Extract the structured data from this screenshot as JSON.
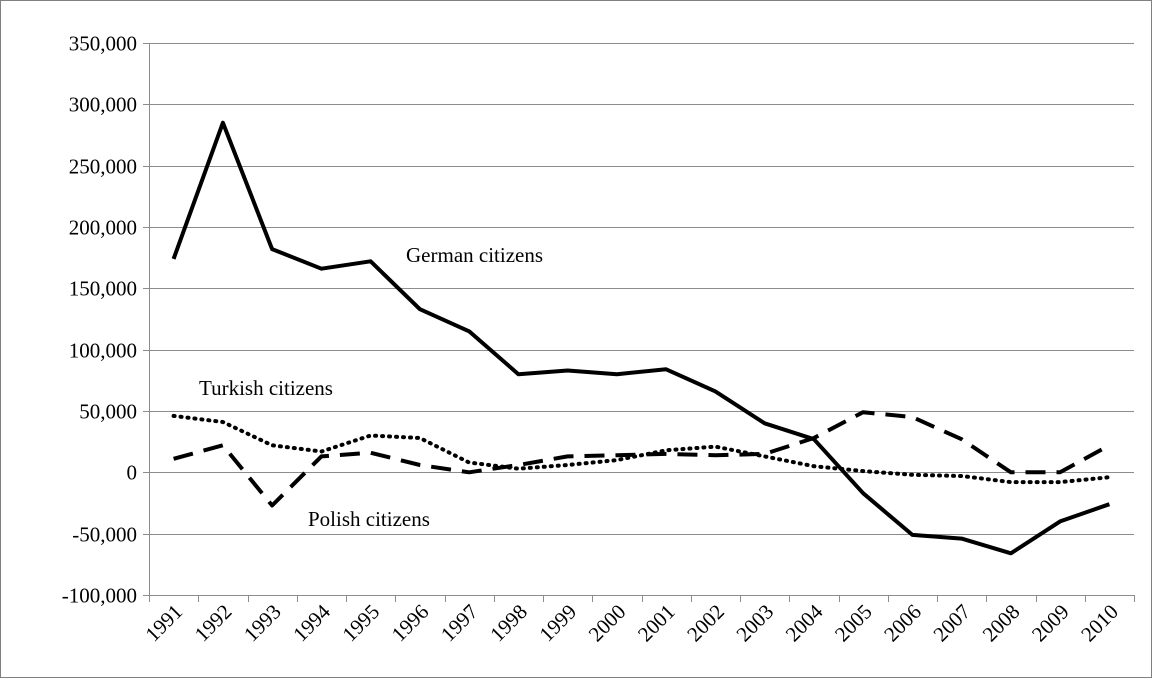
{
  "chart_data": {
    "type": "line",
    "title": "",
    "xlabel": "",
    "ylabel": "",
    "ylim": [
      -100000,
      350000
    ],
    "yticks": [
      350000,
      300000,
      250000,
      200000,
      150000,
      100000,
      50000,
      0,
      -50000,
      -100000
    ],
    "ytick_labels": [
      "350,000",
      "300,000",
      "250,000",
      "200,000",
      "150,000",
      "100,000",
      "50,000",
      "0",
      "-50,000",
      "-100,000"
    ],
    "x": [
      "1991",
      "1992",
      "1993",
      "1994",
      "1995",
      "1996",
      "1997",
      "1998",
      "1999",
      "2000",
      "2001",
      "2002",
      "2003",
      "2004",
      "2005",
      "2006",
      "2007",
      "2008",
      "2009",
      "2010"
    ],
    "grid": "horizontal",
    "legend": "none",
    "series": [
      {
        "name": "German citizens",
        "style": "solid",
        "color": "#000000",
        "values": [
          174000,
          285000,
          182000,
          166000,
          172000,
          133000,
          115000,
          80000,
          83000,
          80000,
          84000,
          66000,
          40000,
          27000,
          -17000,
          -51000,
          -54000,
          -66000,
          -40000,
          -26000
        ]
      },
      {
        "name": "Turkish citizens",
        "style": "dotted",
        "color": "#000000",
        "values": [
          46000,
          41000,
          22000,
          17000,
          30000,
          28000,
          8000,
          3000,
          6000,
          10000,
          18000,
          21000,
          13000,
          5000,
          1000,
          -2000,
          -3000,
          -8000,
          -8000,
          -4000
        ]
      },
      {
        "name": "Polish citizens",
        "style": "dashed",
        "color": "#000000",
        "values": [
          11000,
          22000,
          -27000,
          13000,
          16000,
          6000,
          0,
          6000,
          13000,
          14000,
          15000,
          14000,
          15000,
          28000,
          49000,
          45000,
          27000,
          0,
          0,
          22000
        ]
      }
    ],
    "annotations": [
      {
        "text": "German citizens",
        "series": "German citizens"
      },
      {
        "text": "Turkish citizens",
        "series": "Turkish citizens"
      },
      {
        "text": "Polish citizens",
        "series": "Polish citizens"
      }
    ]
  }
}
